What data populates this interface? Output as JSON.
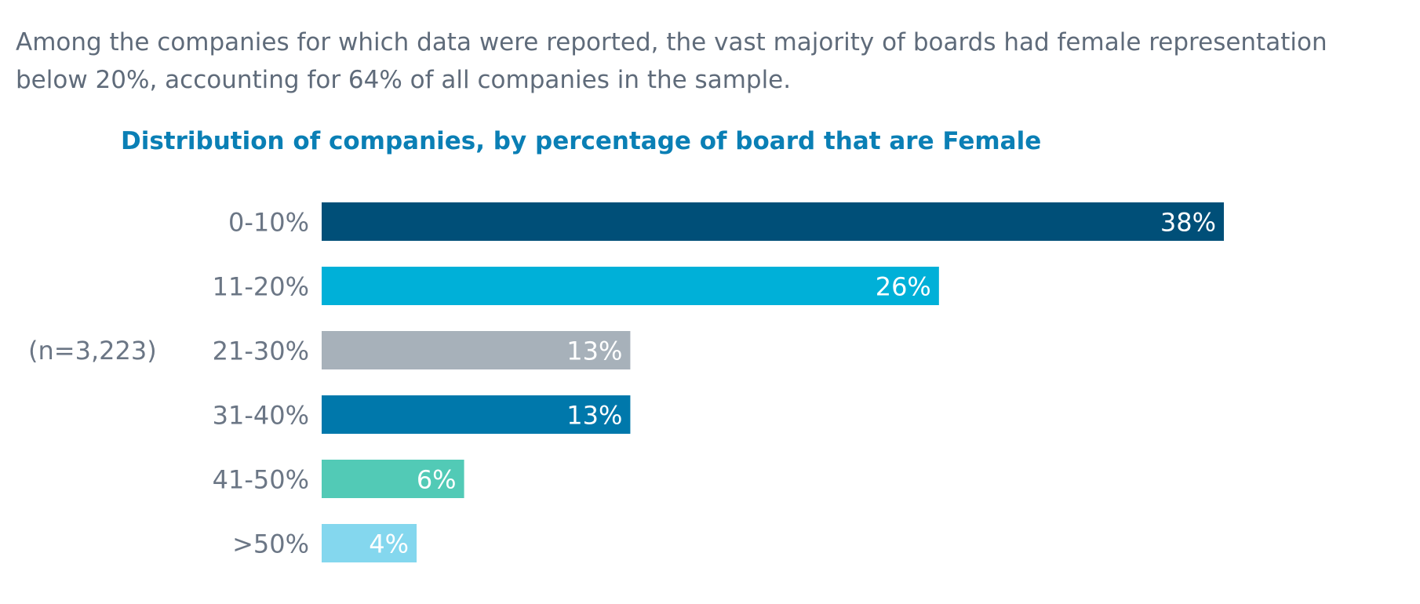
{
  "intro_text": "Among the companies for which data were reported, the vast majority of boards had female representation below 20%, accounting for 64% of all companies in the sample.",
  "sample_note": "(n=3,223)",
  "chart_data": {
    "type": "bar",
    "orientation": "horizontal",
    "title": "Distribution of companies, by percentage of board that are Female",
    "categories": [
      "0-10%",
      "11-20%",
      "21-30%",
      "31-40%",
      "41-50%",
      ">50%"
    ],
    "values": [
      38,
      26,
      13,
      13,
      6,
      4
    ],
    "value_labels": [
      "38%",
      "26%",
      "13%",
      "13%",
      "6%",
      "4%"
    ],
    "colors": [
      "#004f78",
      "#00b0d8",
      "#a7b1ba",
      "#0078ab",
      "#52cab6",
      "#84d7ee"
    ],
    "xlim": [
      0,
      38
    ],
    "grid": false,
    "legend": "none"
  }
}
